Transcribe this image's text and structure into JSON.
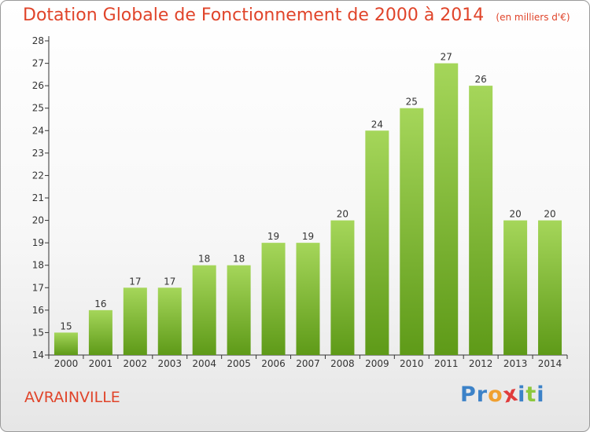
{
  "title": "Dotation Globale de Fonctionnement de 2000 à 2014",
  "unit_note": "(en milliers d'€)",
  "commune": "AVRAINVILLE",
  "logo": {
    "letters": [
      "P",
      "r",
      "o",
      "x",
      "i",
      "t",
      "i"
    ],
    "colors": [
      "#3c82c8",
      "#3c82c8",
      "#f0a030",
      "#e03c3c",
      "#3c82c8",
      "#8cc83c",
      "#3c82c8"
    ]
  },
  "colors": {
    "bar_top": "#a5d65a",
    "bar_bottom": "#5e9a18",
    "title": "#e0442a"
  },
  "chart_data": {
    "type": "bar",
    "categories": [
      "2000",
      "2001",
      "2002",
      "2003",
      "2004",
      "2005",
      "2006",
      "2007",
      "2008",
      "2009",
      "2010",
      "2011",
      "2012",
      "2013",
      "2014"
    ],
    "values": [
      15,
      16,
      17,
      17,
      18,
      18,
      19,
      19,
      20,
      24,
      25,
      27,
      26,
      20,
      20
    ],
    "title": "Dotation Globale de Fonctionnement de 2000 à 2014",
    "ylim": [
      14,
      28
    ],
    "yticks": [
      14,
      15,
      16,
      17,
      18,
      19,
      20,
      21,
      22,
      23,
      24,
      25,
      26,
      27,
      28
    ],
    "grid": false,
    "legend": "none"
  }
}
